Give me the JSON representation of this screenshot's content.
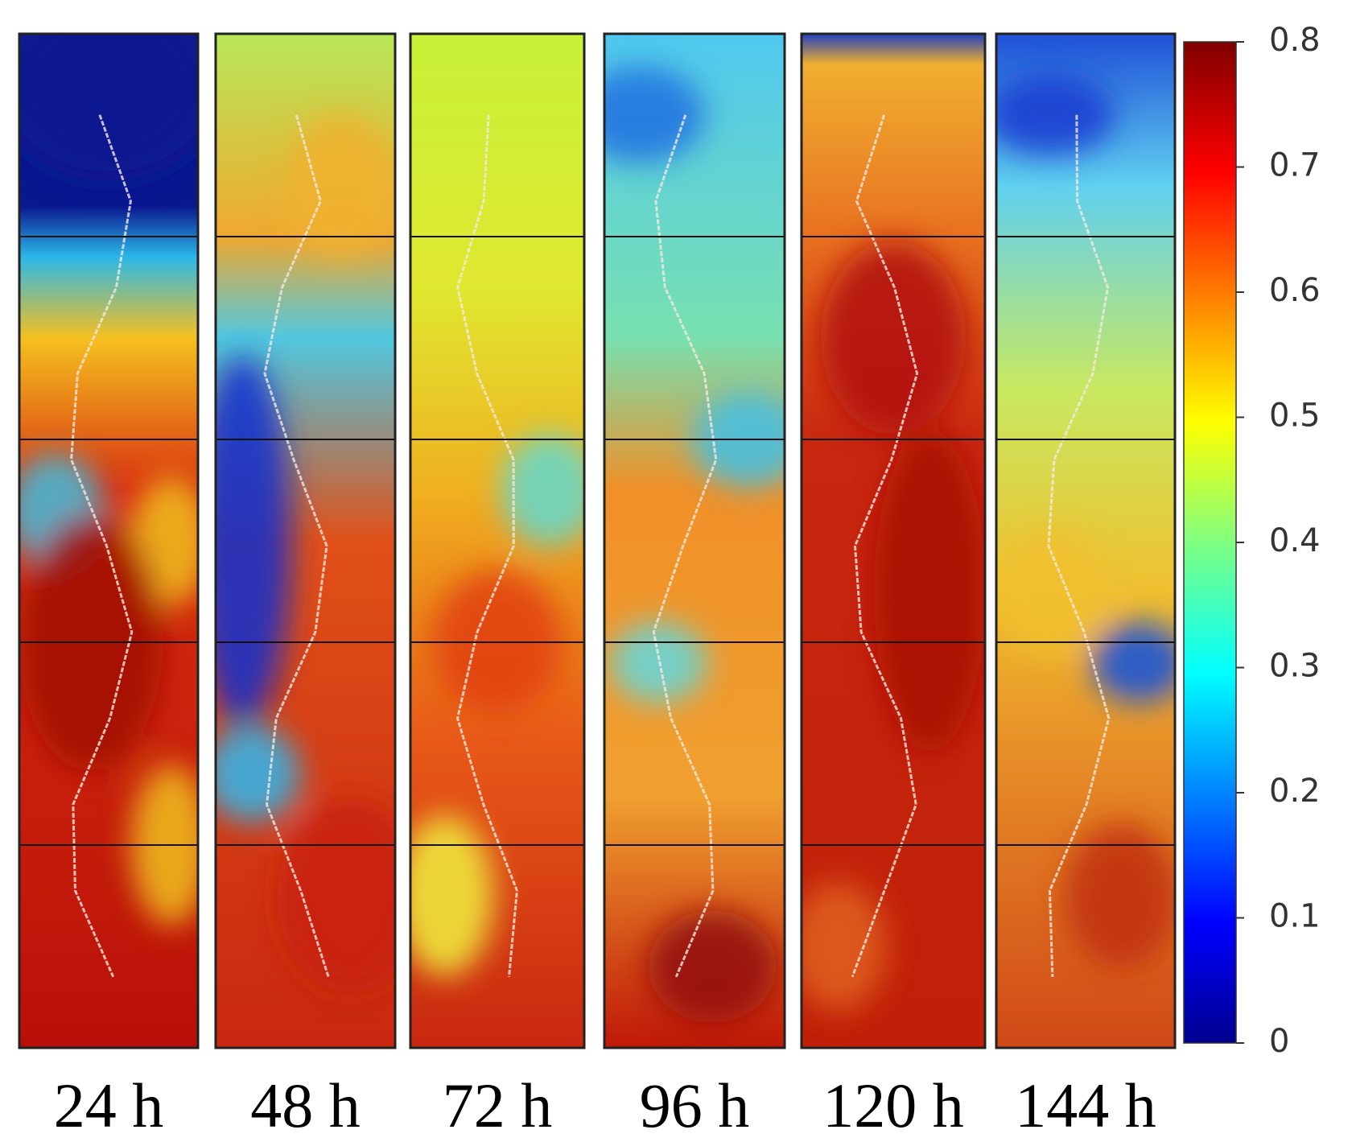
{
  "chart_data": {
    "type": "heatmap",
    "panels": [
      "24 h",
      "48 h",
      "72 h",
      "96 h",
      "120 h",
      "144 h"
    ],
    "colormap": "jet",
    "clim": [
      0,
      0.8
    ],
    "cticks": [
      0,
      0.1,
      0.2,
      0.3,
      0.4,
      0.5,
      0.6,
      0.7,
      0.8
    ]
  }
}
